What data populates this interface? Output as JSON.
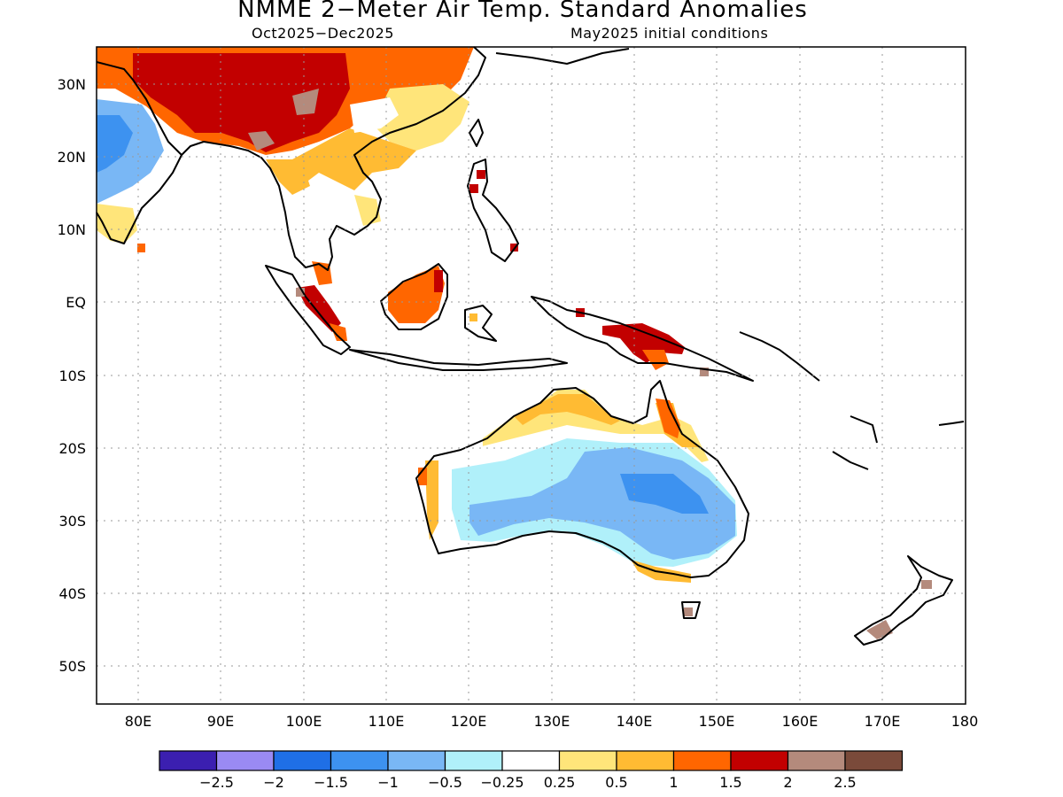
{
  "title": "NMME 2−Meter Air Temp. Standard Anomalies",
  "subtitle_left": "Oct2025−Dec2025",
  "subtitle_right": "May2025 initial conditions",
  "axes": {
    "lon_labels": [
      "80E",
      "90E",
      "100E",
      "110E",
      "120E",
      "130E",
      "140E",
      "150E",
      "160E",
      "170E",
      "180"
    ],
    "lat_labels": [
      "30N",
      "20N",
      "10N",
      "EQ",
      "10S",
      "20S",
      "30S",
      "40S",
      "50S"
    ]
  },
  "colorbar": {
    "colors": [
      "#3b1fb0",
      "#9a8af3",
      "#1f6fe6",
      "#3d92f0",
      "#79b7f5",
      "#b0f0fa",
      "#ffffff",
      "#ffe57a",
      "#ffbb33",
      "#ff6600",
      "#c20000",
      "#b48a7c",
      "#7a4a3a"
    ],
    "labels": [
      "−2.5",
      "−2",
      "−1.5",
      "−1",
      "−0.5",
      "−0.25",
      "0.25",
      "0.5",
      "1",
      "1.5",
      "2",
      "2.5"
    ]
  }
}
